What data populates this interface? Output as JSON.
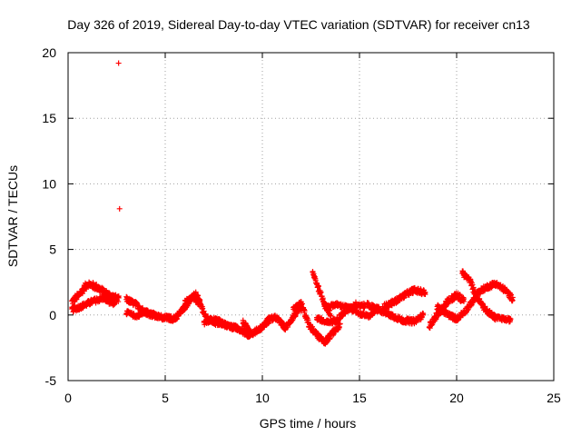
{
  "chart_data": {
    "type": "scatter",
    "title": "Day 326 of 2019, Sidereal Day-to-day VTEC variation (SDTVAR) for receiver cn13",
    "xlabel": "GPS time / hours",
    "ylabel": "SDTVAR / TECUs",
    "xlim": [
      0,
      25
    ],
    "ylim": [
      -5,
      20
    ],
    "xticks": [
      0,
      5,
      10,
      15,
      20,
      25
    ],
    "yticks": [
      -5,
      0,
      5,
      10,
      15,
      20
    ],
    "grid": true,
    "marker": "+",
    "color": "#ff0000",
    "outliers": [
      {
        "x": 2.6,
        "y": 19.2
      },
      {
        "x": 2.65,
        "y": 8.1
      }
    ],
    "tracks": [
      {
        "t": [
          0.2,
          0.6,
          1.0,
          1.5,
          2.0,
          2.6
        ],
        "y": [
          1.0,
          1.6,
          2.4,
          2.1,
          1.6,
          1.2
        ],
        "spread": 0.5
      },
      {
        "t": [
          0.2,
          0.6,
          1.2,
          1.8,
          2.4
        ],
        "y": [
          0.4,
          0.6,
          1.0,
          1.3,
          0.8
        ],
        "spread": 0.4
      },
      {
        "t": [
          3.0,
          3.5,
          4.0,
          4.5,
          5.0
        ],
        "y": [
          1.2,
          0.8,
          0.2,
          -0.1,
          -0.2
        ],
        "spread": 0.4
      },
      {
        "t": [
          3.0,
          3.5,
          4.1,
          4.6
        ],
        "y": [
          0.2,
          -0.1,
          0.3,
          -0.1
        ],
        "spread": 0.3
      },
      {
        "t": [
          5.0,
          5.5,
          6.0,
          6.4,
          6.8
        ],
        "y": [
          -0.2,
          -0.3,
          0.6,
          1.4,
          0.8
        ],
        "spread": 0.4
      },
      {
        "t": [
          6.0,
          6.6,
          7.1,
          7.6,
          8.2,
          8.8,
          9.4
        ],
        "y": [
          0.9,
          1.6,
          -0.2,
          -0.6,
          -0.8,
          -1.1,
          -1.6
        ],
        "spread": 0.4
      },
      {
        "t": [
          7.0,
          7.6,
          8.2,
          8.7
        ],
        "y": [
          -0.6,
          -0.3,
          -0.8,
          -0.9
        ],
        "spread": 0.3
      },
      {
        "t": [
          9.0,
          9.5,
          10.0,
          10.4
        ],
        "y": [
          -0.6,
          -1.4,
          -0.9,
          -0.3
        ],
        "spread": 0.4
      },
      {
        "t": [
          10.2,
          10.7,
          11.2,
          11.6,
          12.0
        ],
        "y": [
          -0.4,
          -0.2,
          -1.0,
          -0.1,
          0.5
        ],
        "spread": 0.4
      },
      {
        "t": [
          11.6,
          12.0,
          12.4,
          12.8,
          13.2,
          13.6,
          14.0
        ],
        "y": [
          0.4,
          0.9,
          -0.8,
          -1.5,
          -2.1,
          -1.4,
          -0.8
        ],
        "spread": 0.4
      },
      {
        "t": [
          12.6,
          12.9,
          13.2,
          13.5
        ],
        "y": [
          3.2,
          2.0,
          0.9,
          0.0
        ],
        "spread": 0.4
      },
      {
        "t": [
          12.8,
          13.3,
          13.8,
          14.3,
          14.8,
          15.3
        ],
        "y": [
          -0.2,
          -0.6,
          -0.4,
          0.3,
          0.8,
          0.7
        ],
        "spread": 0.4
      },
      {
        "t": [
          13.2,
          13.8,
          14.4,
          15.0,
          15.5,
          16.0
        ],
        "y": [
          0.6,
          0.8,
          0.6,
          0.1,
          -0.1,
          0.6
        ],
        "spread": 0.3
      },
      {
        "t": [
          15.4,
          16.0,
          16.6,
          17.2,
          17.8,
          18.3
        ],
        "y": [
          0.8,
          0.4,
          0.0,
          -0.4,
          -0.5,
          0.0
        ],
        "spread": 0.4
      },
      {
        "t": [
          16.2,
          16.8,
          17.4,
          17.8,
          18.4
        ],
        "y": [
          0.6,
          1.0,
          1.6,
          1.9,
          1.7
        ],
        "spread": 0.4
      },
      {
        "t": [
          18.6,
          19.0,
          19.5,
          20.0,
          20.4
        ],
        "y": [
          -0.8,
          0.0,
          1.0,
          1.5,
          1.1
        ],
        "spread": 0.5
      },
      {
        "t": [
          19.0,
          19.5,
          20.0,
          20.5,
          21.0
        ],
        "y": [
          0.6,
          0.1,
          -0.3,
          0.4,
          1.4
        ],
        "spread": 0.4
      },
      {
        "t": [
          20.3,
          20.7,
          21.0,
          21.5,
          22.0
        ],
        "y": [
          3.2,
          2.6,
          1.4,
          0.4,
          -0.2
        ],
        "spread": 0.4
      },
      {
        "t": [
          21.0,
          21.5,
          22.0,
          22.5,
          22.9
        ],
        "y": [
          1.6,
          2.1,
          2.4,
          1.9,
          1.2
        ],
        "spread": 0.4
      },
      {
        "t": [
          21.6,
          22.0,
          22.4,
          22.8
        ],
        "y": [
          0.2,
          -0.2,
          -0.3,
          -0.4
        ],
        "spread": 0.3
      }
    ]
  }
}
